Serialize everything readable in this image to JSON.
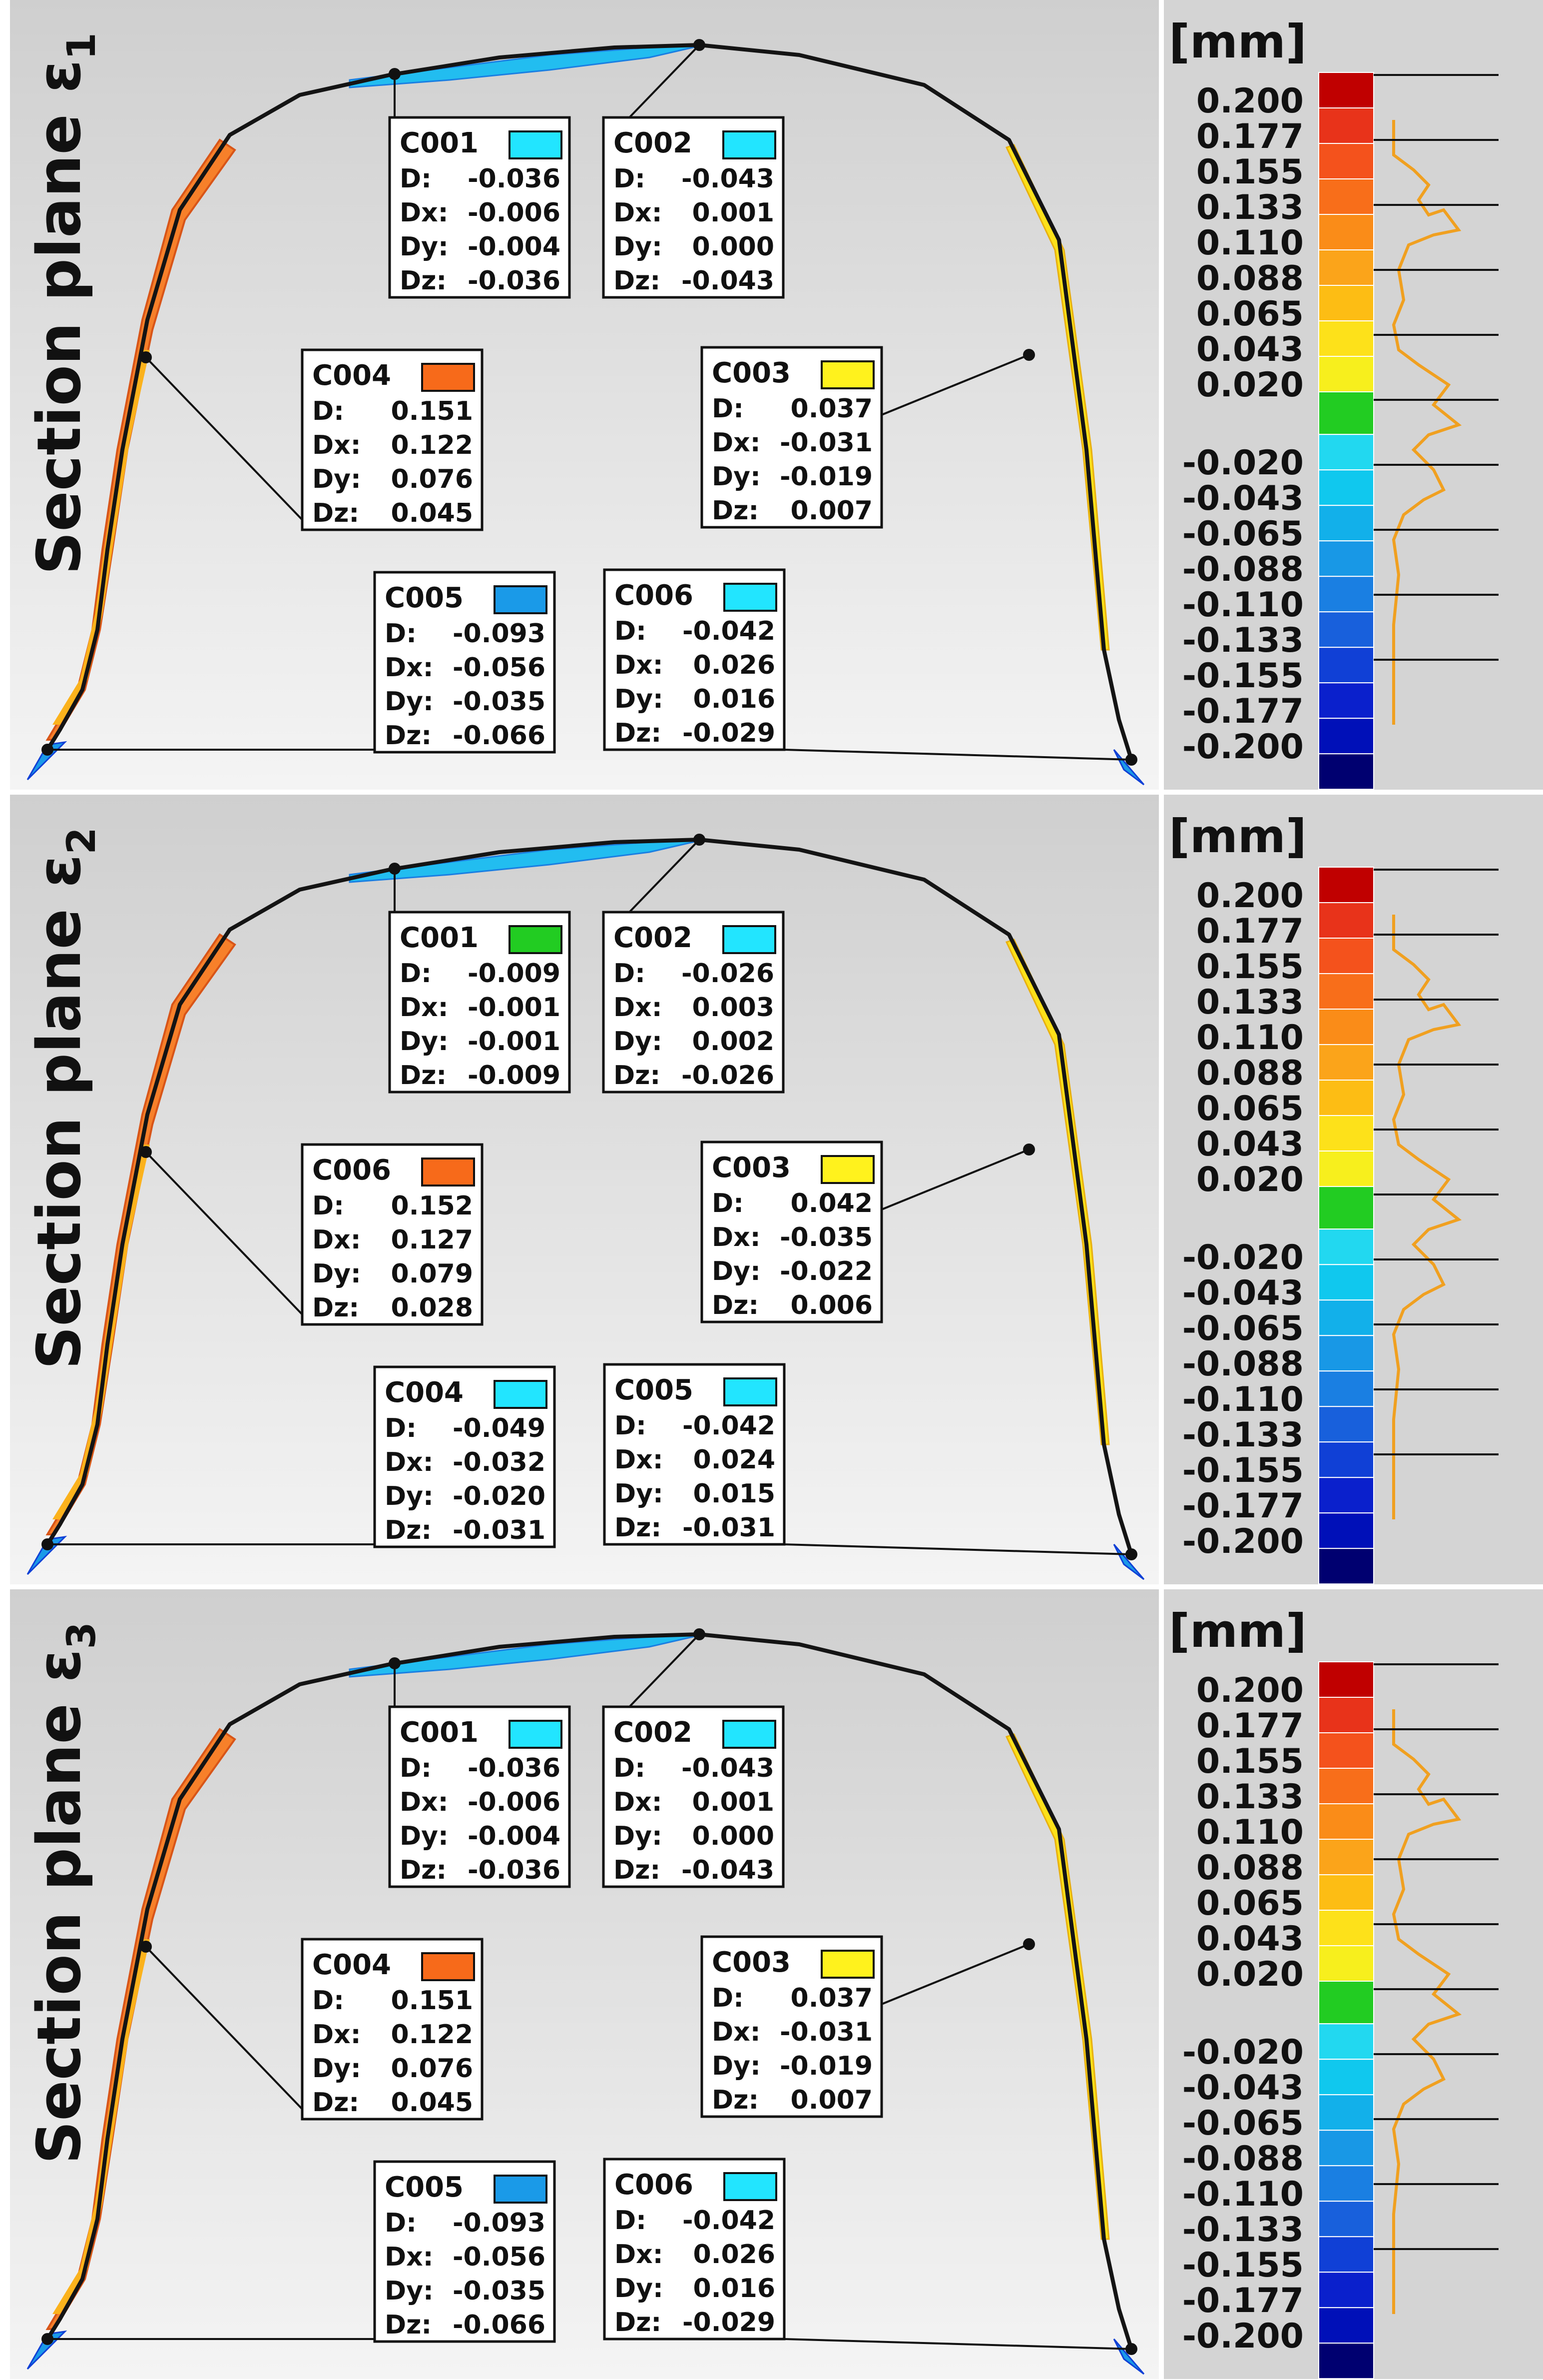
{
  "unit_label": "[mm]",
  "colors": {
    "bg_top": "#cfcfcf",
    "bg_bottom": "#f4f4f4",
    "legend_bg": "#d4d4d4",
    "profile": "#141414",
    "bands": [
      "#c00000",
      "#e8331a",
      "#f4521c",
      "#f86e1a",
      "#fa8c18",
      "#fba41a",
      "#fdbd14",
      "#fde11a",
      "#f7ef1d",
      "#22cc22",
      "#22d8f0",
      "#10c8ee",
      "#12b0ea",
      "#1898e6",
      "#1a7fe2",
      "#1860dc",
      "#1040d6",
      "#0a20cc",
      "#0010b8",
      "#000070"
    ]
  },
  "scale_labels": [
    "0.200",
    "0.177",
    "0.155",
    "0.133",
    "0.110",
    "0.088",
    "0.065",
    "0.043",
    "0.020",
    "-0.020",
    "-0.043",
    "-0.065",
    "-0.088",
    "-0.110",
    "-0.133",
    "-0.155",
    "-0.177",
    "-0.200"
  ],
  "panels": [
    {
      "title": "Section plane ε",
      "subscript": "1",
      "callouts": [
        {
          "id": "C001",
          "color": "#22e5ff",
          "D": "-0.036",
          "Dx": "-0.006",
          "Dy": "-0.004",
          "Dz": "-0.036"
        },
        {
          "id": "C002",
          "color": "#22e5ff",
          "D": "-0.043",
          "Dx": "0.001",
          "Dy": "0.000",
          "Dz": "-0.043"
        },
        {
          "id": "C004",
          "color": "#f76a1a",
          "D": "0.151",
          "Dx": "0.122",
          "Dy": "0.076",
          "Dz": "0.045"
        },
        {
          "id": "C003",
          "color": "#fff21d",
          "D": "0.037",
          "Dx": "-0.031",
          "Dy": "-0.019",
          "Dz": "0.007"
        },
        {
          "id": "C005",
          "color": "#1a9ae8",
          "D": "-0.093",
          "Dx": "-0.056",
          "Dy": "-0.035",
          "Dz": "-0.066"
        },
        {
          "id": "C006",
          "color": "#22e5ff",
          "D": "-0.042",
          "Dx": "0.026",
          "Dy": "0.016",
          "Dz": "-0.029"
        }
      ]
    },
    {
      "title": "Section plane ε",
      "subscript": "2",
      "callouts": [
        {
          "id": "C001",
          "color": "#22cc22",
          "D": "-0.009",
          "Dx": "-0.001",
          "Dy": "-0.001",
          "Dz": "-0.009"
        },
        {
          "id": "C002",
          "color": "#22e5ff",
          "D": "-0.026",
          "Dx": "0.003",
          "Dy": "0.002",
          "Dz": "-0.026"
        },
        {
          "id": "C006",
          "color": "#f76a1a",
          "D": "0.152",
          "Dx": "0.127",
          "Dy": "0.079",
          "Dz": "0.028"
        },
        {
          "id": "C003",
          "color": "#fff21d",
          "D": "0.042",
          "Dx": "-0.035",
          "Dy": "-0.022",
          "Dz": "0.006"
        },
        {
          "id": "C004",
          "color": "#22e5ff",
          "D": "-0.049",
          "Dx": "-0.032",
          "Dy": "-0.020",
          "Dz": "-0.031"
        },
        {
          "id": "C005",
          "color": "#22e5ff",
          "D": "-0.042",
          "Dx": "0.024",
          "Dy": "0.015",
          "Dz": "-0.031"
        }
      ]
    },
    {
      "title": "Section plane ε",
      "subscript": "3",
      "callouts": [
        {
          "id": "C001",
          "color": "#22e5ff",
          "D": "-0.036",
          "Dx": "-0.006",
          "Dy": "-0.004",
          "Dz": "-0.036"
        },
        {
          "id": "C002",
          "color": "#22e5ff",
          "D": "-0.043",
          "Dx": "0.001",
          "Dy": "0.000",
          "Dz": "-0.043"
        },
        {
          "id": "C004",
          "color": "#f76a1a",
          "D": "0.151",
          "Dx": "0.122",
          "Dy": "0.076",
          "Dz": "0.045"
        },
        {
          "id": "C003",
          "color": "#fff21d",
          "D": "0.037",
          "Dx": "-0.031",
          "Dy": "-0.019",
          "Dz": "0.007"
        },
        {
          "id": "C005",
          "color": "#1a9ae8",
          "D": "-0.093",
          "Dx": "-0.056",
          "Dy": "-0.035",
          "Dz": "-0.066"
        },
        {
          "id": "C006",
          "color": "#22e5ff",
          "D": "-0.042",
          "Dx": "0.026",
          "Dy": "0.016",
          "Dz": "-0.029"
        }
      ]
    }
  ]
}
